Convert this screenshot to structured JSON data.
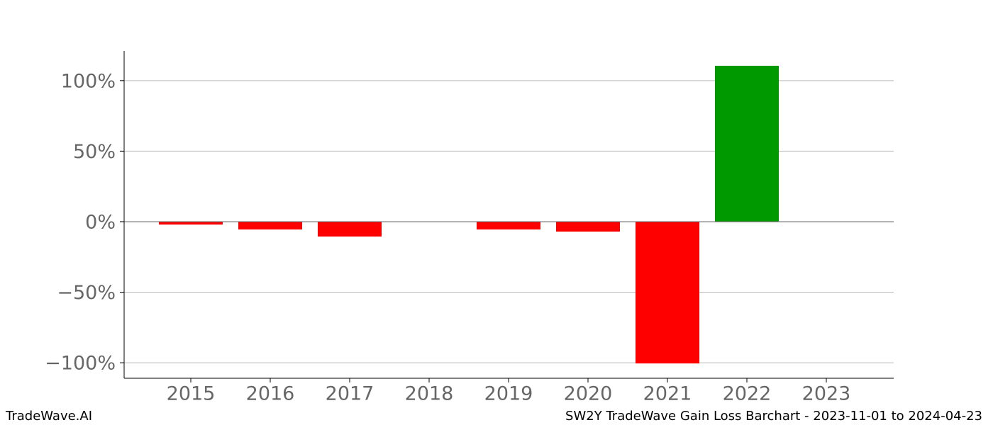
{
  "chart_data": {
    "type": "bar",
    "categories": [
      "2015",
      "2016",
      "2017",
      "2018",
      "2019",
      "2020",
      "2021",
      "2022",
      "2023"
    ],
    "values": [
      -2,
      -5.5,
      -10.5,
      0,
      -5.5,
      -7,
      -100.5,
      110.5,
      0
    ],
    "colors": [
      "#ff0000",
      "#ff0000",
      "#ff0000",
      "#ff0000",
      "#ff0000",
      "#ff0000",
      "#ff0000",
      "#009900",
      "#ff0000"
    ],
    "ylim": [
      -111,
      121
    ],
    "yticks": [
      {
        "value": -100,
        "label": "−100%"
      },
      {
        "value": -50,
        "label": "−50%"
      },
      {
        "value": 0,
        "label": "0%"
      },
      {
        "value": 50,
        "label": "50%"
      },
      {
        "value": 100,
        "label": "100%"
      }
    ],
    "grid": true
  },
  "footer": {
    "left": "TradeWave.AI",
    "right": "SW2Y TradeWave Gain Loss Barchart - 2023-11-01 to 2024-04-23"
  }
}
